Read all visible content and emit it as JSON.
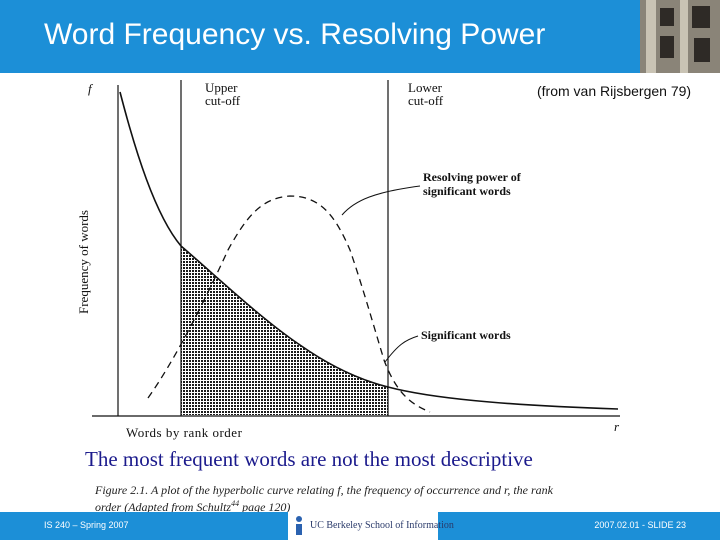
{
  "slide": {
    "title": "Word Frequency vs. Resolving Power",
    "source_note": "(from van Rijsbergen 79)",
    "caption": "The most frequent words are not the most descriptive",
    "figure_caption_line1": "Figure 2.1.   A plot of the hyperbolic curve relating f, the frequency of occurrence and r, the rank",
    "figure_caption_line2": "order (Adapted from Schultz",
    "figure_caption_superscript": "44",
    "figure_caption_line2_end": " page 120)"
  },
  "figure": {
    "y_axis_symbol": "f",
    "x_axis_symbol": "r",
    "y_axis_label": "Frequency of words",
    "x_axis_label": "Words by rank order",
    "upper_cutoff_line1": "Upper",
    "upper_cutoff_line2": "cut-off",
    "lower_cutoff_line1": "Lower",
    "lower_cutoff_line2": "cut-off",
    "resolving_line1": "Resolving power of",
    "resolving_line2": "significant words",
    "significant_label": "Significant words"
  },
  "footer": {
    "course": "IS 240 – Spring 2007",
    "slide_info": "2007.02.01 - SLIDE 23",
    "logo_text": "UC Berkeley School of Information"
  },
  "colors": {
    "header_blue": "#1c8fd7",
    "caption_blue": "#1b1a8c"
  }
}
